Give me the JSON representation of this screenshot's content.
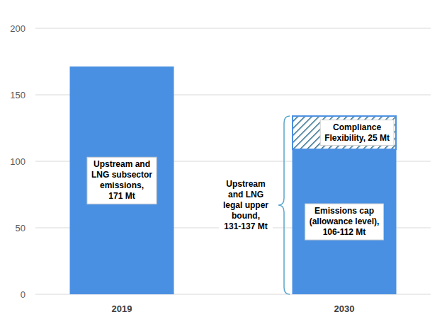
{
  "chart_data": {
    "type": "bar",
    "stacked": true,
    "categories": [
      "2019",
      "2030"
    ],
    "series": [
      {
        "values": [
          171,
          109
        ],
        "color": "#4a90e2"
      },
      {
        "values": [
          null,
          25
        ],
        "color": "#2f6e8c"
      }
    ],
    "ylim": [
      0,
      200
    ],
    "yticks": [
      0,
      50,
      100,
      150,
      200
    ],
    "grid": true,
    "annotations": [
      {
        "lines": [
          "Upstream and",
          "LNG subsector",
          "emissions,",
          "171 Mt"
        ]
      },
      {
        "lines": [
          "Emissions cap",
          "(allowance level),",
          "106-112 Mt"
        ]
      },
      {
        "lines": [
          "Compliance",
          "Flexibility, 25 Mt"
        ]
      },
      {
        "lines": [
          "Upstream",
          "and LNG",
          "legal upper",
          "bound,",
          "131-137 Mt"
        ]
      }
    ]
  }
}
